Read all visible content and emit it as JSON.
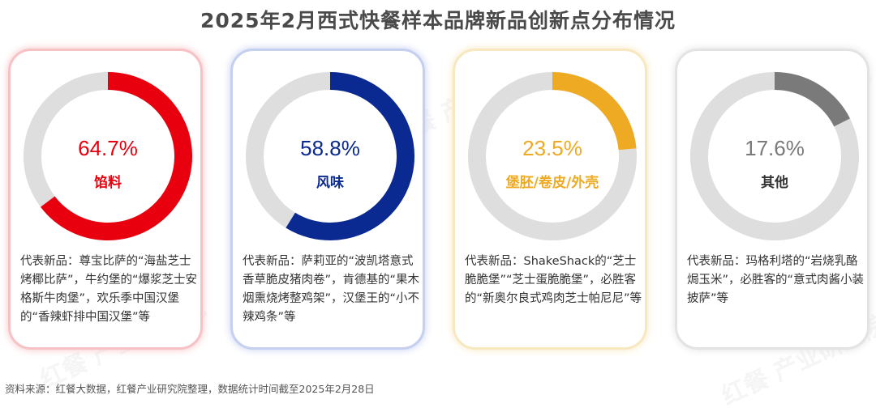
{
  "title": "2025年2月西式快餐样本品牌新品创新点分布情况",
  "source": "资料来源：红餐大数据，红餐产业研究院整理，数据统计时间截至2025年2月28日",
  "watermark": "红餐 产业研究院",
  "chart_data": {
    "type": "pie",
    "title": "2025年2月西式快餐样本品牌新品创新点分布情况",
    "series": [
      {
        "name": "馅料",
        "value": 64.7,
        "label": "64.7%",
        "color": "#e8000f",
        "border": "#f6c2c5",
        "description": "代表新品：尊宝比萨的“海盐芝士烤椰比萨”，牛约堡的“爆浆芝士安格斯牛肉堡”，欢乐季中国汉堡的“香辣虾排中国汉堡”等"
      },
      {
        "name": "风味",
        "value": 58.8,
        "label": "58.8%",
        "color": "#0a2a91",
        "border": "#c5cff0",
        "description": "代表新品：萨莉亚的“波凯塔意式香草脆皮猪肉卷”，肯德基的“果木烟熏烧烤整鸡架”，汉堡王的“小不辣鸡条”等"
      },
      {
        "name": "堡胚/卷皮/外壳",
        "value": 23.5,
        "label": "23.5%",
        "color": "#eeaa22",
        "border": "#f8e8c0",
        "description": "代表新品：ShakeShack的“芝士脆脆堡”“芝士蛋脆脆堡”，必胜客的“新奥尔良式鸡肉芝士帕尼尼”等"
      },
      {
        "name": "其他",
        "value": 17.6,
        "label": "17.6%",
        "color": "#7a7a7a",
        "border": "#e3e3e3",
        "description": "代表新品：玛格利塔的“岩烧乳酪焗玉米”，必胜客的“意式肉酱小装披萨”等"
      }
    ],
    "track_color": "#dedede"
  }
}
